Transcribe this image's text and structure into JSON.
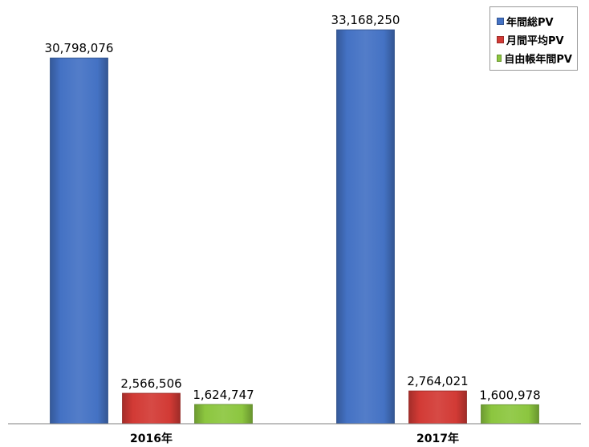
{
  "chart_data": {
    "type": "bar",
    "title": "",
    "xlabel": "",
    "ylabel": "",
    "categories": [
      "2016年",
      "2017年"
    ],
    "ylim": [
      0,
      35000000
    ],
    "grid": false,
    "legend_position": "top-right",
    "series": [
      {
        "name": "年間総PV",
        "color": "#4472c4",
        "values": [
          30798076,
          33168250
        ],
        "labels": [
          "30,798,076",
          "33,168,250"
        ]
      },
      {
        "name": "月間平均PV",
        "color": "#d23a35",
        "values": [
          2566506,
          2764021
        ],
        "labels": [
          "2,566,506",
          "2,764,021"
        ]
      },
      {
        "name": "自由帳年間PV",
        "color": "#8cc63f",
        "values": [
          1624747,
          1600978
        ],
        "labels": [
          "1,624,747",
          "1,600,978"
        ]
      }
    ]
  }
}
